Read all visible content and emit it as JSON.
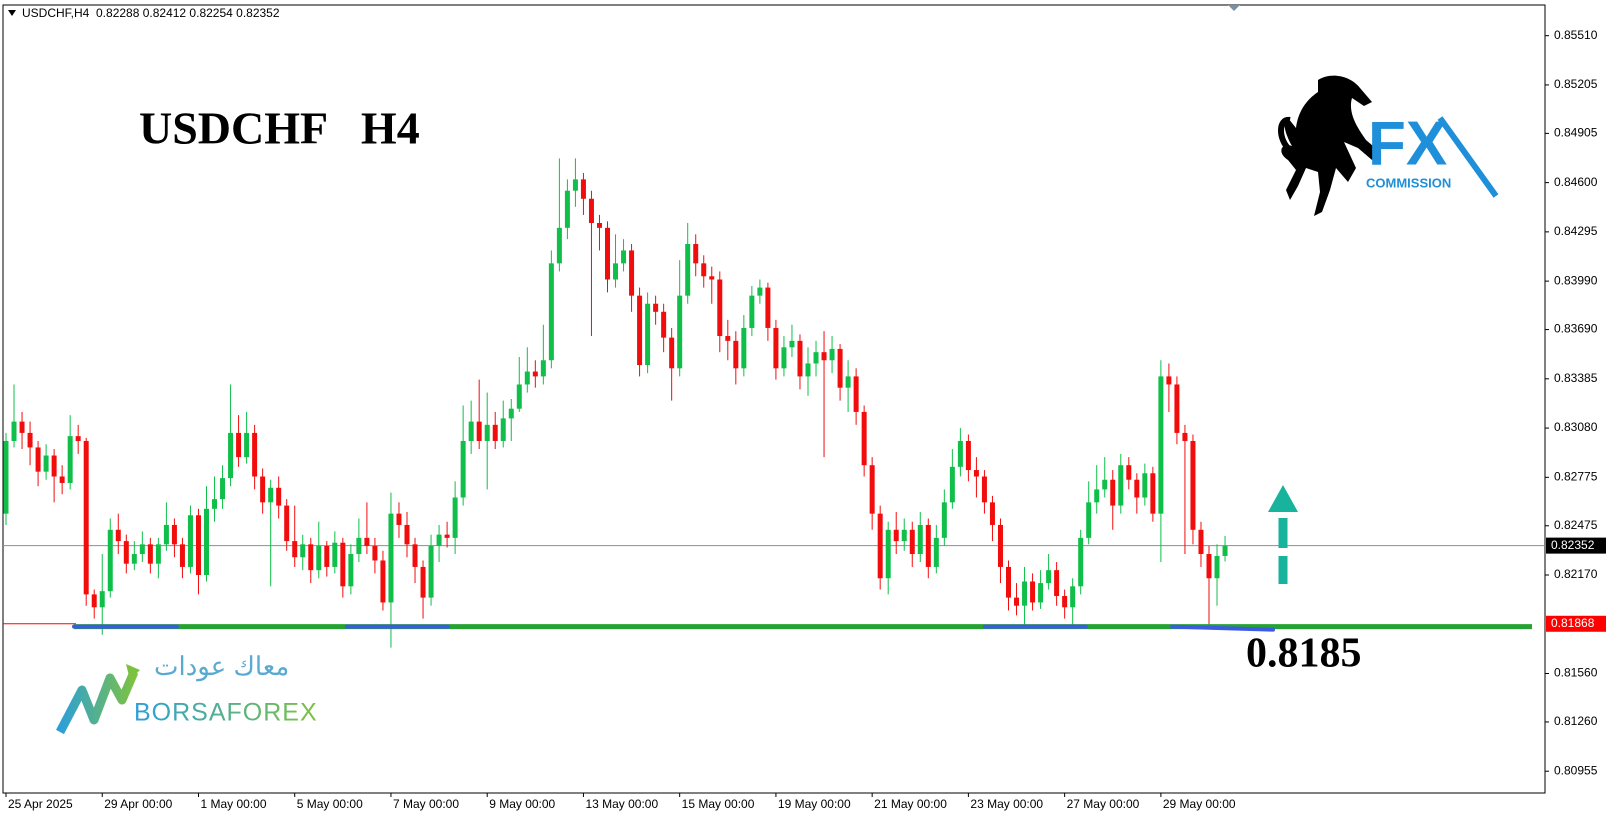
{
  "chart_data": {
    "type": "candlestick",
    "title": "USDCHF,H4  0.82288 0.82412 0.82254 0.82352",
    "annotation": "USDCHF   H4",
    "categories": [
      "25 Apr 2025",
      null,
      null,
      null,
      null,
      null,
      null,
      null,
      null,
      null,
      null,
      null,
      "29 Apr 00:00",
      null,
      null,
      null,
      null,
      null,
      null,
      null,
      null,
      null,
      null,
      null,
      "1 May 00:00",
      null,
      null,
      null,
      null,
      null,
      null,
      null,
      null,
      null,
      null,
      null,
      "5 May 00:00",
      null,
      null,
      null,
      null,
      null,
      null,
      null,
      null,
      null,
      null,
      null,
      "7 May 00:00",
      null,
      null,
      null,
      null,
      null,
      null,
      null,
      null,
      null,
      null,
      null,
      "9 May 00:00",
      null,
      null,
      null,
      null,
      null,
      null,
      null,
      null,
      null,
      null,
      null,
      "13 May 00:00",
      null,
      null,
      null,
      null,
      null,
      null,
      null,
      null,
      null,
      null,
      null,
      "15 May 00:00",
      null,
      null,
      null,
      null,
      null,
      null,
      null,
      null,
      null,
      null,
      null,
      "19 May 00:00",
      null,
      null,
      null,
      null,
      null,
      null,
      null,
      null,
      null,
      null,
      null,
      "21 May 00:00",
      null,
      null,
      null,
      null,
      null,
      null,
      null,
      null,
      null,
      null,
      null,
      "23 May 00:00",
      null,
      null,
      null,
      null,
      null,
      null,
      null,
      null,
      null,
      null,
      null,
      "27 May 00:00",
      null,
      null,
      null,
      null,
      null,
      null,
      null,
      null,
      null,
      null,
      null,
      "29 May 00:00",
      null,
      null,
      null,
      null,
      null,
      null,
      null,
      null
    ],
    "open": [
      0.8255,
      0.83,
      0.8312,
      0.8305,
      0.8296,
      0.8281,
      0.8291,
      0.8278,
      0.8274,
      0.8303,
      0.83,
      0.8205,
      0.8197,
      0.8207,
      0.8245,
      0.8238,
      0.8224,
      0.823,
      0.8236,
      0.8224,
      0.8236,
      0.8248,
      0.8236,
      0.8222,
      0.8254,
      0.8217,
      0.8258,
      0.8264,
      0.8277,
      0.8305,
      0.829,
      0.8305,
      0.8278,
      0.8262,
      0.8271,
      0.826,
      0.8238,
      0.8228,
      0.8236,
      0.822,
      0.8235,
      0.8222,
      0.8237,
      0.821,
      0.823,
      0.824,
      0.8235,
      0.8226,
      0.82,
      0.8255,
      0.8248,
      0.8236,
      0.8222,
      0.8203,
      0.8235,
      0.8242,
      0.824,
      0.8265,
      0.83,
      0.8312,
      0.83,
      0.831,
      0.83,
      0.8314,
      0.832,
      0.8335,
      0.8343,
      0.834,
      0.835,
      0.841,
      0.8432,
      0.8455,
      0.8462,
      0.845,
      0.8435,
      0.8432,
      0.84,
      0.841,
      0.8418,
      0.839,
      0.8347,
      0.8385,
      0.838,
      0.8364,
      0.8345,
      0.839,
      0.8422,
      0.841,
      0.8402,
      0.84,
      0.8365,
      0.8362,
      0.8345,
      0.837,
      0.839,
      0.8395,
      0.837,
      0.8345,
      0.8358,
      0.8362,
      0.834,
      0.8348,
      0.8355,
      0.835,
      0.8357,
      0.8333,
      0.834,
      0.8318,
      0.8285,
      0.8255,
      0.8215,
      0.8245,
      0.8238,
      0.8245,
      0.823,
      0.8248,
      0.8222,
      0.824,
      0.8262,
      0.8284,
      0.83,
      0.8282,
      0.8278,
      0.8262,
      0.8248,
      0.8222,
      0.8203,
      0.8198,
      0.8213,
      0.82,
      0.8212,
      0.822,
      0.8204,
      0.8197,
      0.821,
      0.824,
      0.8262,
      0.827,
      0.8276,
      0.826,
      0.8285,
      0.8276,
      0.8265,
      0.828,
      0.8255,
      0.834,
      0.8335,
      0.8305,
      0.83,
      0.8245,
      0.823,
      0.8215,
      0.82288
    ],
    "high": [
      0.8305,
      0.8335,
      0.8318,
      0.8312,
      0.83,
      0.8298,
      0.8295,
      0.8285,
      0.8316,
      0.831,
      0.8302,
      0.8208,
      0.823,
      0.8252,
      0.8255,
      0.8242,
      0.8238,
      0.8244,
      0.824,
      0.824,
      0.8262,
      0.8252,
      0.824,
      0.826,
      0.8258,
      0.8272,
      0.8278,
      0.8285,
      0.8335,
      0.8316,
      0.8318,
      0.831,
      0.8283,
      0.8276,
      0.8278,
      0.8264,
      0.826,
      0.8242,
      0.824,
      0.825,
      0.8238,
      0.8244,
      0.824,
      0.8236,
      0.8252,
      0.8262,
      0.824,
      0.8232,
      0.8268,
      0.8262,
      0.8256,
      0.824,
      0.8226,
      0.8242,
      0.8248,
      0.825,
      0.8275,
      0.8322,
      0.8325,
      0.8338,
      0.833,
      0.8318,
      0.8325,
      0.8326,
      0.8352,
      0.8358,
      0.835,
      0.8372,
      0.8418,
      0.8475,
      0.8462,
      0.8475,
      0.8466,
      0.8455,
      0.844,
      0.8436,
      0.8428,
      0.8425,
      0.8422,
      0.8395,
      0.8392,
      0.839,
      0.8385,
      0.837,
      0.8412,
      0.8435,
      0.8428,
      0.8415,
      0.8408,
      0.8405,
      0.8375,
      0.8368,
      0.8378,
      0.8396,
      0.84,
      0.8398,
      0.8375,
      0.8365,
      0.8372,
      0.8366,
      0.8358,
      0.8362,
      0.8368,
      0.8365,
      0.836,
      0.835,
      0.8345,
      0.8322,
      0.829,
      0.826,
      0.825,
      0.8256,
      0.8252,
      0.825,
      0.8256,
      0.8252,
      0.8248,
      0.827,
      0.8295,
      0.8308,
      0.8304,
      0.829,
      0.8282,
      0.8266,
      0.8252,
      0.8226,
      0.8212,
      0.8222,
      0.8218,
      0.822,
      0.823,
      0.8225,
      0.8208,
      0.8215,
      0.8245,
      0.8275,
      0.8285,
      0.829,
      0.8282,
      0.8292,
      0.829,
      0.828,
      0.8286,
      0.8284,
      0.835,
      0.8348,
      0.834,
      0.831,
      0.8304,
      0.825,
      0.8235,
      0.8236,
      0.82412
    ],
    "low": [
      0.8248,
      0.8296,
      0.8295,
      0.8285,
      0.8272,
      0.8276,
      0.8262,
      0.8267,
      0.827,
      0.8292,
      0.8198,
      0.819,
      0.818,
      0.8203,
      0.823,
      0.8218,
      0.822,
      0.8225,
      0.8218,
      0.8215,
      0.8232,
      0.8228,
      0.8215,
      0.8218,
      0.8205,
      0.8213,
      0.825,
      0.8258,
      0.8272,
      0.8284,
      0.8286,
      0.827,
      0.8255,
      0.821,
      0.8252,
      0.8232,
      0.8222,
      0.822,
      0.8212,
      0.8215,
      0.8216,
      0.8218,
      0.8203,
      0.8205,
      0.8225,
      0.823,
      0.8218,
      0.8195,
      0.8172,
      0.824,
      0.8228,
      0.8212,
      0.819,
      0.8198,
      0.8225,
      0.8234,
      0.823,
      0.826,
      0.8292,
      0.8295,
      0.827,
      0.8295,
      0.8296,
      0.83,
      0.8318,
      0.833,
      0.8333,
      0.8335,
      0.8345,
      0.8405,
      0.8425,
      0.8445,
      0.844,
      0.8365,
      0.8418,
      0.8392,
      0.8395,
      0.8405,
      0.838,
      0.834,
      0.8342,
      0.8372,
      0.8355,
      0.8325,
      0.834,
      0.8385,
      0.8402,
      0.8395,
      0.8385,
      0.8355,
      0.835,
      0.8335,
      0.834,
      0.8365,
      0.8385,
      0.8362,
      0.8338,
      0.834,
      0.8352,
      0.8332,
      0.8328,
      0.834,
      0.829,
      0.8342,
      0.8325,
      0.8318,
      0.831,
      0.8278,
      0.8245,
      0.8208,
      0.8205,
      0.823,
      0.8232,
      0.8222,
      0.8225,
      0.8215,
      0.8218,
      0.8235,
      0.8258,
      0.8278,
      0.8275,
      0.8265,
      0.8255,
      0.8238,
      0.8212,
      0.8195,
      0.8192,
      0.8186,
      0.8195,
      0.8196,
      0.8208,
      0.8198,
      0.819,
      0.8186,
      0.8205,
      0.8236,
      0.8255,
      0.8265,
      0.8245,
      0.8255,
      0.827,
      0.8255,
      0.826,
      0.825,
      0.8225,
      0.8318,
      0.8298,
      0.823,
      0.8236,
      0.8222,
      0.8185,
      0.8198,
      0.82254
    ],
    "close": [
      0.83,
      0.8312,
      0.8305,
      0.8296,
      0.8281,
      0.8291,
      0.8278,
      0.8274,
      0.8303,
      0.83,
      0.8205,
      0.8197,
      0.8207,
      0.8245,
      0.8238,
      0.8224,
      0.823,
      0.8236,
      0.8224,
      0.8236,
      0.8248,
      0.8236,
      0.8222,
      0.8254,
      0.8217,
      0.8258,
      0.8264,
      0.8277,
      0.8305,
      0.829,
      0.8305,
      0.8278,
      0.8262,
      0.8271,
      0.826,
      0.8238,
      0.8228,
      0.8236,
      0.822,
      0.8235,
      0.8222,
      0.8237,
      0.821,
      0.823,
      0.824,
      0.8235,
      0.8226,
      0.82,
      0.8255,
      0.8248,
      0.8236,
      0.8222,
      0.8203,
      0.8235,
      0.8242,
      0.824,
      0.8265,
      0.83,
      0.8312,
      0.83,
      0.831,
      0.83,
      0.8314,
      0.832,
      0.8335,
      0.8343,
      0.834,
      0.835,
      0.841,
      0.8432,
      0.8455,
      0.8462,
      0.845,
      0.8435,
      0.8432,
      0.84,
      0.841,
      0.8418,
      0.839,
      0.8347,
      0.8385,
      0.838,
      0.8364,
      0.8345,
      0.839,
      0.8422,
      0.841,
      0.8402,
      0.84,
      0.8365,
      0.8362,
      0.8345,
      0.837,
      0.839,
      0.8395,
      0.837,
      0.8345,
      0.8358,
      0.8362,
      0.834,
      0.8348,
      0.8355,
      0.835,
      0.8357,
      0.8333,
      0.834,
      0.8318,
      0.8285,
      0.8255,
      0.8215,
      0.8245,
      0.8238,
      0.8245,
      0.823,
      0.8248,
      0.8222,
      0.824,
      0.8262,
      0.8284,
      0.83,
      0.8282,
      0.8278,
      0.8262,
      0.8248,
      0.8222,
      0.8203,
      0.8198,
      0.8213,
      0.82,
      0.8212,
      0.822,
      0.8204,
      0.8197,
      0.821,
      0.824,
      0.8262,
      0.827,
      0.8276,
      0.826,
      0.8285,
      0.8276,
      0.8265,
      0.828,
      0.8255,
      0.834,
      0.8335,
      0.8305,
      0.83,
      0.8245,
      0.823,
      0.8215,
      0.82288,
      0.82352
    ],
    "up_color": "#0fbf4a",
    "down_color": "#f20d0d",
    "ylim": [
      0.8082,
      0.857
    ],
    "yticks": [
      {
        "value": 0.8551,
        "label": "0.85510"
      },
      0.85205,
      0.84905,
      {
        "value": 0.846,
        "label": "0.84600"
      },
      0.84295,
      {
        "value": 0.8399,
        "label": "0.83990"
      },
      {
        "value": 0.8369,
        "label": "0.83690"
      },
      0.83385,
      {
        "value": 0.8308,
        "label": "0.83080"
      },
      0.82775,
      0.82475,
      {
        "value": 0.8217,
        "label": "0.82170"
      },
      {
        "value": 0.8156,
        "label": "0.81560"
      },
      {
        "value": 0.8126,
        "label": "0.81260"
      },
      0.80955
    ],
    "price_lines": [
      {
        "value": 0.82352,
        "color": "#7a9a8a",
        "label_color": "#000000"
      },
      {
        "value": 0.81868,
        "color": "#ff0000",
        "label_color": "#ff0000"
      }
    ],
    "support": 0.8185,
    "support_color": "#26a232",
    "touch_color": "#3d5be0",
    "arrow_color": "#17b39c"
  },
  "logos": {
    "fx": {
      "mark": "FX",
      "caption": "COMMISSION"
    },
    "borsaforex": {
      "arabic": "معاك عودات",
      "name": "BORSAFOREX"
    }
  }
}
